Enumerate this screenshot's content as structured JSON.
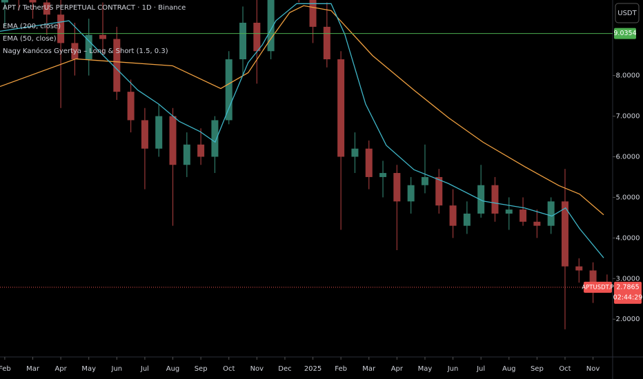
{
  "chart_data": {
    "type": "candlestick",
    "title": "APT / TetherUS PERPETUAL CONTRACT · 1D · Binance",
    "indicator": "Nagy Kanócos Gyertya – Long & Short (1.5, 0.3)",
    "currency": "USDT",
    "up_color": "#2f7a68",
    "down_color": "#9a3838",
    "candles": {
      "x": [
        0,
        0.5,
        1,
        1.5,
        2,
        2.5,
        3,
        3.5,
        4,
        4.5,
        5,
        5.5,
        6,
        6.5,
        7,
        7.5,
        8,
        8.5,
        9,
        9.5,
        10,
        10.5,
        11,
        11.5,
        12,
        12.5,
        13,
        13.5,
        14,
        14.5,
        15,
        15.5,
        16,
        16.5,
        17,
        17.5,
        18,
        18.5,
        19,
        19.5,
        20,
        20.5,
        21,
        21.5
      ],
      "open": [
        9.8,
        10.2,
        10.0,
        9.8,
        9.5,
        8.8,
        8.4,
        9.0,
        8.9,
        7.6,
        6.9,
        6.2,
        7.0,
        5.8,
        6.3,
        6.0,
        6.9,
        8.4,
        9.3,
        8.6,
        10.5,
        12.5,
        10.2,
        9.2,
        8.4,
        6.0,
        6.2,
        5.5,
        5.6,
        4.9,
        5.3,
        5.5,
        4.8,
        4.3,
        4.6,
        5.3,
        4.6,
        4.7,
        4.4,
        4.3,
        4.9,
        3.3,
        3.2,
        2.9
      ],
      "high": [
        10.5,
        10.8,
        11,
        10.5,
        10.2,
        9.3,
        9.4,
        9.8,
        9.2,
        7.9,
        7.2,
        7.3,
        7.2,
        6.6,
        6.7,
        7.0,
        8.6,
        9.7,
        10.5,
        11,
        13,
        13.5,
        10.3,
        9.8,
        8.6,
        6.6,
        6.4,
        5.9,
        5.8,
        5.5,
        6.3,
        5.7,
        5.2,
        4.9,
        5.8,
        5.5,
        5.0,
        5.0,
        4.7,
        5.0,
        5.7,
        3.5,
        3.4,
        3.1
      ],
      "low": [
        9.2,
        9.6,
        9.4,
        9.0,
        7.2,
        8.0,
        8.0,
        8.5,
        7.4,
        6.6,
        5.2,
        6.0,
        4.3,
        5.5,
        5.8,
        5.6,
        6.8,
        8.0,
        7.8,
        8.4,
        10.0,
        9.8,
        8.8,
        8.2,
        4.2,
        5.6,
        5.2,
        5.0,
        3.7,
        4.6,
        5.1,
        4.6,
        4.0,
        4.1,
        4.5,
        4.4,
        4.2,
        4.3,
        4.0,
        4.1,
        1.75,
        2.9,
        2.4,
        2.7
      ],
      "close": [
        10.2,
        10.0,
        9.8,
        9.5,
        8.8,
        8.4,
        9.0,
        8.9,
        7.6,
        6.9,
        6.2,
        7.0,
        5.8,
        6.3,
        6.0,
        6.9,
        8.4,
        9.3,
        8.6,
        10.5,
        12.5,
        10.2,
        9.2,
        8.4,
        6.0,
        6.2,
        5.5,
        5.6,
        4.9,
        5.3,
        5.5,
        4.8,
        4.3,
        4.6,
        5.3,
        4.6,
        4.7,
        4.4,
        4.3,
        4.9,
        3.3,
        3.2,
        2.9,
        2.79
      ]
    },
    "series": [
      {
        "name": "EMA (200, close)",
        "color": "#f0a040",
        "x": [
          -0.17,
          2.54,
          5.99,
          7.71,
          8.69,
          9.43,
          10.17,
          10.67,
          11.65,
          13.13,
          14.61,
          15.84,
          17.07,
          18.55,
          19.78,
          20.52,
          21.38
        ],
        "values": [
          7.73,
          8.41,
          8.24,
          7.68,
          8.07,
          8.84,
          9.55,
          9.72,
          9.6,
          8.49,
          7.64,
          6.96,
          6.36,
          5.76,
          5.29,
          5.08,
          4.57
        ]
      },
      {
        "name": "EMA (50, close)",
        "color": "#3fb6c8",
        "x": [
          -0.17,
          2.29,
          3.52,
          4.75,
          5.49,
          6.23,
          6.97,
          7.51,
          7.96,
          8.69,
          9.19,
          9.68,
          10.42,
          11.65,
          12.14,
          12.88,
          13.62,
          14.61,
          15.84,
          17.07,
          18.55,
          19.53,
          20.02,
          20.52,
          21.38
        ],
        "values": [
          9.09,
          9.35,
          8.49,
          7.64,
          7.3,
          6.87,
          6.62,
          6.36,
          7.13,
          8.32,
          8.75,
          9.35,
          9.77,
          9.77,
          9.01,
          7.3,
          6.28,
          5.68,
          5.34,
          4.91,
          4.74,
          4.54,
          4.74,
          4.23,
          3.51
        ]
      }
    ],
    "hline": {
      "value": 9.0354,
      "label": "9.0354",
      "color": "#4caf50"
    },
    "last_price": {
      "value": 2.7865,
      "label": "2.7865",
      "symbol": "APTUSDT.P",
      "countdown": "02:44:29",
      "color": "#f05350"
    },
    "xlim": [
      -0.17,
      21.7
    ],
    "xticks": [
      {
        "value": 0,
        "label": "Feb"
      },
      {
        "value": 1,
        "label": "Mar"
      },
      {
        "value": 2,
        "label": "Apr"
      },
      {
        "value": 3,
        "label": "May"
      },
      {
        "value": 4,
        "label": "Jun"
      },
      {
        "value": 5,
        "label": "Jul"
      },
      {
        "value": 6,
        "label": "Aug"
      },
      {
        "value": 7,
        "label": "Sep"
      },
      {
        "value": 8,
        "label": "Oct"
      },
      {
        "value": 9,
        "label": "Nov"
      },
      {
        "value": 10,
        "label": "Dec"
      },
      {
        "value": 11,
        "label": "2025"
      },
      {
        "value": 12,
        "label": "Feb"
      },
      {
        "value": 13,
        "label": "Mar"
      },
      {
        "value": 14,
        "label": "Apr"
      },
      {
        "value": 15,
        "label": "May"
      },
      {
        "value": 16,
        "label": "Jun"
      },
      {
        "value": 17,
        "label": "Jul"
      },
      {
        "value": 18,
        "label": "Aug"
      },
      {
        "value": 19,
        "label": "Sep"
      },
      {
        "value": 20,
        "label": "Oct"
      },
      {
        "value": 21,
        "label": "Nov"
      }
    ],
    "ylim": [
      1.07,
      9.86
    ],
    "yticks": [
      {
        "value": 2,
        "label": "2.0000"
      },
      {
        "value": 3,
        "label": "3.0000"
      },
      {
        "value": 4,
        "label": "4.0000"
      },
      {
        "value": 5,
        "label": "5.0000"
      },
      {
        "value": 6,
        "label": "6.0000"
      },
      {
        "value": 7,
        "label": "7.0000"
      },
      {
        "value": 8,
        "label": "8.0000"
      }
    ]
  }
}
